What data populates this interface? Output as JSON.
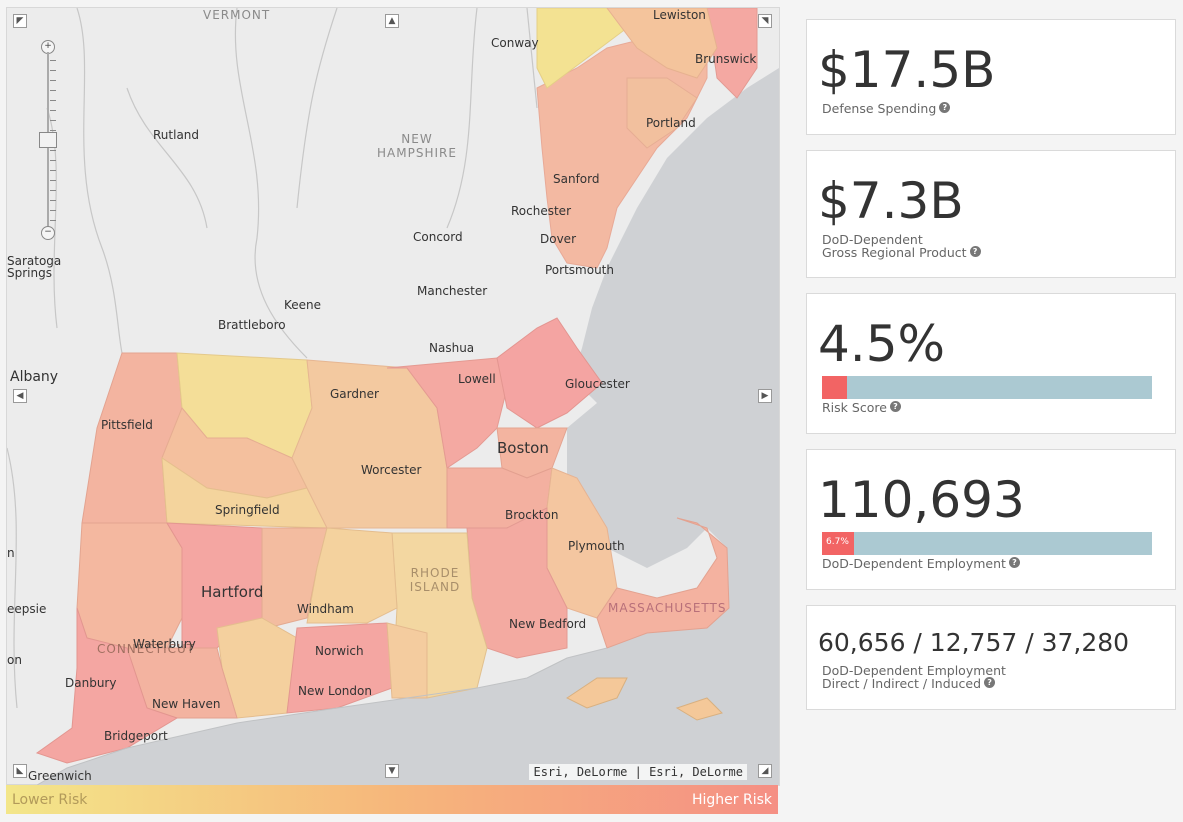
{
  "map": {
    "states": {
      "vermont": "VERMONT",
      "new_hampshire": [
        "NEW",
        "HAMPSHIRE"
      ],
      "rhode_island": [
        "RHODE",
        "ISLAND"
      ],
      "massachusetts": "MASSACHUSETTS",
      "connecticut": "CONNECTICUT"
    },
    "cities": {
      "lewiston": "Lewiston",
      "conway": "Conway",
      "brunswick": "Brunswick",
      "rutland": "Rutland",
      "portland": "Portland",
      "sanford": "Sanford",
      "rochester": "Rochester",
      "concord": "Concord",
      "dover": "Dover",
      "portsmouth": "Portsmouth",
      "saratoga": [
        "Saratoga",
        "Springs"
      ],
      "keene": "Keene",
      "manchester": "Manchester",
      "brattleboro": "Brattleboro",
      "nashua": "Nashua",
      "albany": "Albany",
      "lowell": "Lowell",
      "gloucester": "Gloucester",
      "gardner": "Gardner",
      "pittsfield": "Pittsfield",
      "boston": "Boston",
      "worcester": "Worcester",
      "springfield": "Springfield",
      "brockton": "Brockton",
      "plymouth": "Plymouth",
      "hartford": "Hartford",
      "windham": "Windham",
      "waterbury": "Waterbury",
      "new_bedford": "New Bedford",
      "norwich": "Norwich",
      "danbury": "Danbury",
      "new_london": "New London",
      "new_haven": "New Haven",
      "bridgeport": "Bridgeport",
      "greenwich": "Greenwich",
      "edge_n": "n",
      "edge_eepsie": "eepsie",
      "edge_on": "on"
    },
    "attribution": "Esri, DeLorme | Esri, DeLorme",
    "icons": {
      "pan_nw": "arrow-nw-icon",
      "pan_n": "arrow-up-icon",
      "pan_ne": "arrow-ne-icon",
      "pan_w": "arrow-left-icon",
      "pan_e": "arrow-right-icon",
      "pan_sw": "arrow-sw-icon",
      "pan_s": "arrow-down-icon",
      "pan_se": "arrow-se-icon"
    }
  },
  "legend": {
    "low": "Lower Risk",
    "high": "Higher Risk",
    "colors": {
      "low": "#f3e68a",
      "mid": "#f6b77b",
      "high": "#f58f84"
    }
  },
  "stats": {
    "defense_spending": {
      "value": "$17.5B",
      "label": "Defense Spending"
    },
    "gross_product": {
      "value": "$7.3B",
      "label_1": "DoD-Dependent",
      "label_2": "Gross Regional Product"
    },
    "risk_score": {
      "value": "4.5%",
      "label": "Risk Score",
      "bar_fraction": 0.075
    },
    "employment": {
      "value": "110,693",
      "label": "DoD-Dependent Employment",
      "bar_text": "6.7%",
      "bar_fraction": 0.067
    },
    "breakdown": {
      "value": "60,656 / 12,757 / 37,280",
      "label_1": "DoD-Dependent Employment",
      "label_2": "Direct / Indirect / Induced"
    }
  },
  "colors": {
    "bar_track": "#abc9d2",
    "bar_fill": "#f26464"
  }
}
